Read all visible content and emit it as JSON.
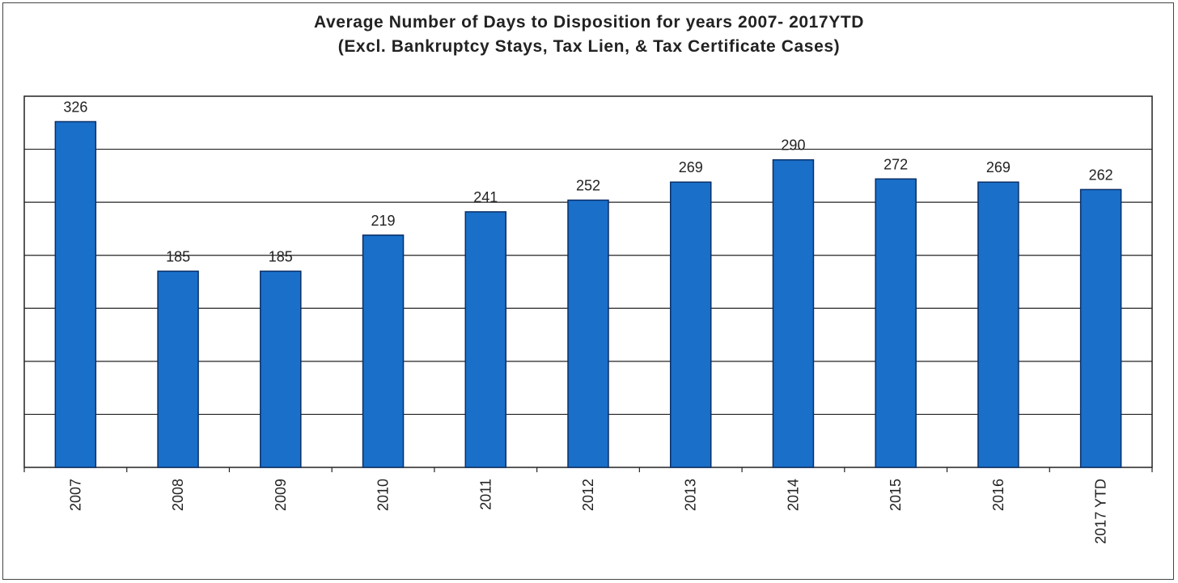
{
  "chart_data": {
    "type": "bar",
    "title": "Average Number of Days to Disposition  for years 2007- 2017YTD",
    "subtitle": "(Excl. Bankruptcy  Stays, Tax Lien, & Tax Certificate Cases)",
    "categories": [
      "2007",
      "2008",
      "2009",
      "2010",
      "2011",
      "2012",
      "2013",
      "2014",
      "2015",
      "2016",
      "2017 YTD"
    ],
    "values": [
      326,
      185,
      185,
      219,
      241,
      252,
      269,
      290,
      272,
      269,
      262
    ],
    "xlabel": "",
    "ylabel": "",
    "ylim": [
      0,
      350
    ],
    "grid": true,
    "bar_color": "#1a6fc9",
    "bar_edge_color": "#0a2f66"
  }
}
